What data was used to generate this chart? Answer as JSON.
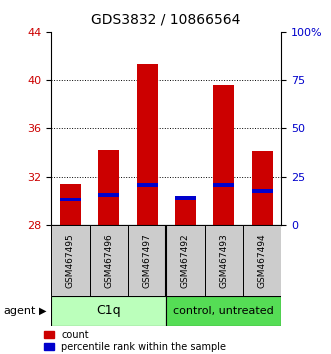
{
  "title": "GDS3832 / 10866564",
  "categories": [
    "GSM467495",
    "GSM467496",
    "GSM467497",
    "GSM467492",
    "GSM467493",
    "GSM467494"
  ],
  "red_values": [
    31.4,
    34.2,
    41.3,
    30.3,
    39.6,
    34.1
  ],
  "blue_values": [
    30.1,
    30.5,
    31.3,
    30.2,
    31.3,
    30.8
  ],
  "bar_base": 28,
  "ylim": [
    28,
    44
  ],
  "right_ylim": [
    0,
    100
  ],
  "right_yticks": [
    0,
    25,
    50,
    75,
    100
  ],
  "right_yticklabels": [
    "0",
    "25",
    "50",
    "75",
    "100%"
  ],
  "left_yticks": [
    28,
    32,
    36,
    40,
    44
  ],
  "grid_values": [
    32,
    36,
    40
  ],
  "red_color": "#cc0000",
  "blue_color": "#0000cc",
  "bar_width": 0.55,
  "group1_label": "C1q",
  "group2_label": "control, untreated",
  "group1_bg": "#bbffbb",
  "group2_bg": "#55dd55",
  "agent_label": "agent",
  "legend_count": "count",
  "legend_pct": "percentile rank within the sample",
  "title_fontsize": 10,
  "axis_fontsize": 8,
  "tick_label_color_left": "#cc0000",
  "tick_label_color_right": "#0000cc"
}
